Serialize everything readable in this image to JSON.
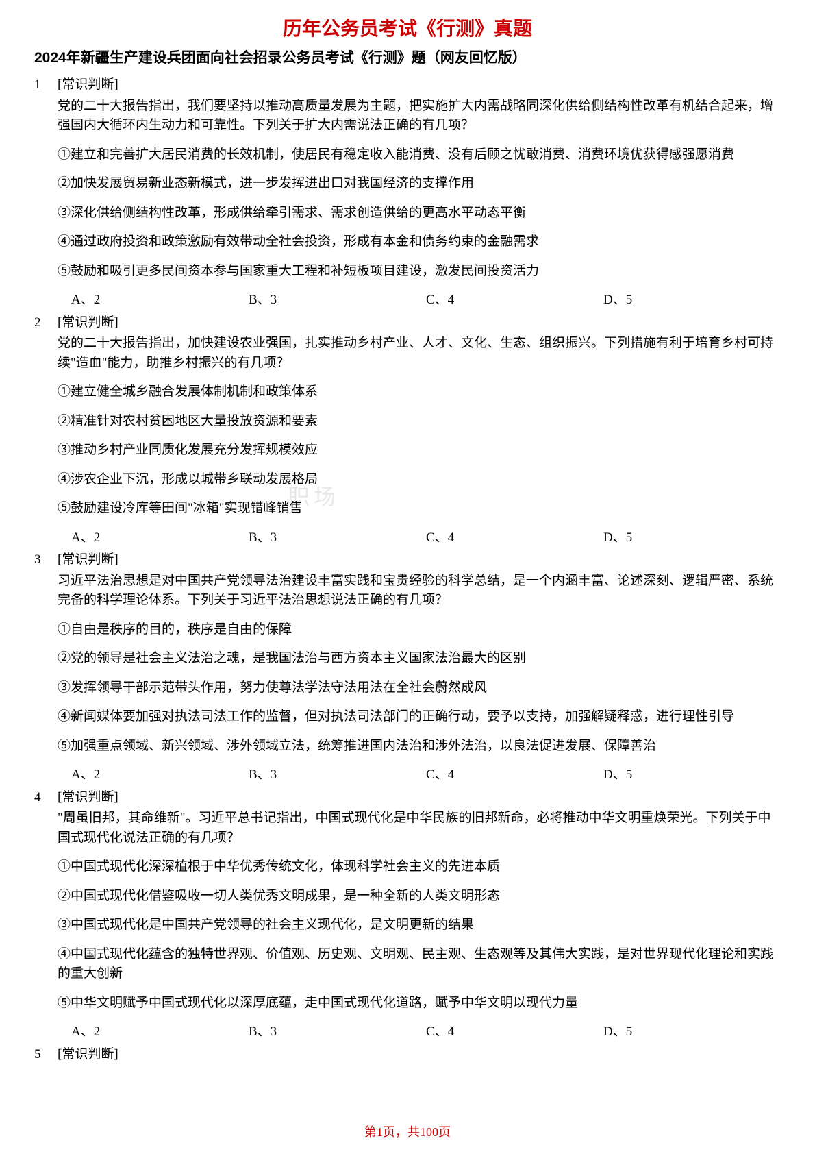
{
  "doc_title": "历年公务员考试《行测》真题",
  "doc_subtitle": "2024年新疆生产建设兵团面向社会招录公务员考试《行测》题（网友回忆版）",
  "watermark": "职场",
  "footer": "第1页，共100页",
  "questions": [
    {
      "num": "1",
      "tag": "[常识判断]",
      "stem": "党的二十大报告指出，我们要坚持以推动高质量发展为主题，把实施扩大内需战略同深化供给侧结构性改革有机结合起来，增强国内大循环内生动力和可靠性。下列关于扩大内需说法正确的有几项？",
      "statements": [
        "①建立和完善扩大居民消费的长效机制，使居民有稳定收入能消费、没有后顾之忧敢消费、消费环境优获得感强愿消费",
        "②加快发展贸易新业态新模式，进一步发挥进出口对我国经济的支撑作用",
        "③深化供给侧结构性改革，形成供给牵引需求、需求创造供给的更高水平动态平衡",
        "④通过政府投资和政策激励有效带动全社会投资，形成有本金和债务约束的金融需求",
        "⑤鼓励和吸引更多民间资本参与国家重大工程和补短板项目建设，激发民间投资活力"
      ],
      "options": [
        "A、2",
        "B、3",
        "C、4",
        "D、5"
      ]
    },
    {
      "num": "2",
      "tag": "[常识判断]",
      "stem": "党的二十大报告指出，加快建设农业强国，扎实推动乡村产业、人才、文化、生态、组织振兴。下列措施有利于培育乡村可持续\"造血\"能力，助推乡村振兴的有几项？",
      "statements": [
        "①建立健全城乡融合发展体制机制和政策体系",
        "②精准针对农村贫困地区大量投放资源和要素",
        "③推动乡村产业同质化发展充分发挥规模效应",
        "④涉农企业下沉，形成以城带乡联动发展格局",
        "⑤鼓励建设冷库等田间\"冰箱\"实现错峰销售"
      ],
      "options": [
        "A、2",
        "B、3",
        "C、4",
        "D、5"
      ]
    },
    {
      "num": "3",
      "tag": "[常识判断]",
      "stem": "习近平法治思想是对中国共产党领导法治建设丰富实践和宝贵经验的科学总结，是一个内涵丰富、论述深刻、逻辑严密、系统完备的科学理论体系。下列关于习近平法治思想说法正确的有几项？",
      "statements": [
        "①自由是秩序的目的，秩序是自由的保障",
        "②党的领导是社会主义法治之魂，是我国法治与西方资本主义国家法治最大的区别",
        "③发挥领导干部示范带头作用，努力使尊法学法守法用法在全社会蔚然成风",
        "④新闻媒体要加强对执法司法工作的监督，但对执法司法部门的正确行动，要予以支持，加强解疑释惑，进行理性引导",
        "⑤加强重点领域、新兴领域、涉外领域立法，统筹推进国内法治和涉外法治，以良法促进发展、保障善治"
      ],
      "options": [
        "A、2",
        "B、3",
        "C、4",
        "D、5"
      ]
    },
    {
      "num": "4",
      "tag": "[常识判断]",
      "stem": "\"周虽旧邦，其命维新\"。习近平总书记指出，中国式现代化是中华民族的旧邦新命，必将推动中华文明重焕荣光。下列关于中国式现代化说法正确的有几项？",
      "statements": [
        "①中国式现代化深深植根于中华优秀传统文化，体现科学社会主义的先进本质",
        "②中国式现代化借鉴吸收一切人类优秀文明成果，是一种全新的人类文明形态",
        "③中国式现代化是中国共产党领导的社会主义现代化，是文明更新的结果",
        "④中国式现代化蕴含的独特世界观、价值观、历史观、文明观、民主观、生态观等及其伟大实践，是对世界现代化理论和实践的重大创新",
        "⑤中华文明赋予中国式现代化以深厚底蕴，走中国式现代化道路，赋予中华文明以现代力量"
      ],
      "options": [
        "A、2",
        "B、3",
        "C、4",
        "D、5"
      ]
    },
    {
      "num": "5",
      "tag": "[常识判断]",
      "stem": "",
      "statements": [],
      "options": []
    }
  ],
  "colors": {
    "title_color": "#cc0000",
    "footer_color": "#cc0000",
    "text_color": "#000000",
    "background": "#ffffff",
    "watermark_color": "#e8e8e8"
  },
  "typography": {
    "title_fontsize": 28,
    "subtitle_fontsize": 21,
    "body_fontsize": 19,
    "footer_fontsize": 18
  }
}
